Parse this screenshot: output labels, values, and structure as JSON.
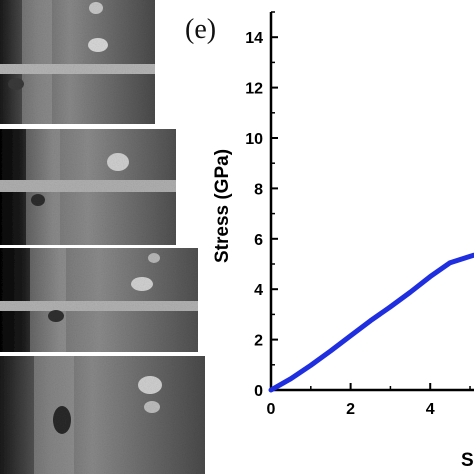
{
  "figure": {
    "panel_label": "(e)"
  },
  "micrographs": [
    {
      "frame": 1
    },
    {
      "frame": 2
    },
    {
      "frame": 3
    },
    {
      "frame": 4
    }
  ],
  "chart_data": {
    "type": "line",
    "panel": "(e)",
    "xlabel": "S",
    "ylabel": "Stress (GPa)",
    "xlim": [
      0,
      5.1
    ],
    "ylim": [
      0,
      15
    ],
    "xticks": [
      0,
      2,
      4
    ],
    "yticks": [
      0,
      2,
      4,
      6,
      8,
      10,
      12,
      14
    ],
    "grid": false,
    "legend": "none",
    "series": [
      {
        "color": "#1f2fe0",
        "x": [
          0,
          0.5,
          1.0,
          1.5,
          2.0,
          2.5,
          3.0,
          3.5,
          4.0,
          4.5,
          5.0,
          5.1
        ],
        "y": [
          0,
          0.45,
          0.98,
          1.55,
          2.15,
          2.75,
          3.3,
          3.88,
          4.5,
          5.05,
          5.3,
          5.35
        ]
      }
    ]
  }
}
